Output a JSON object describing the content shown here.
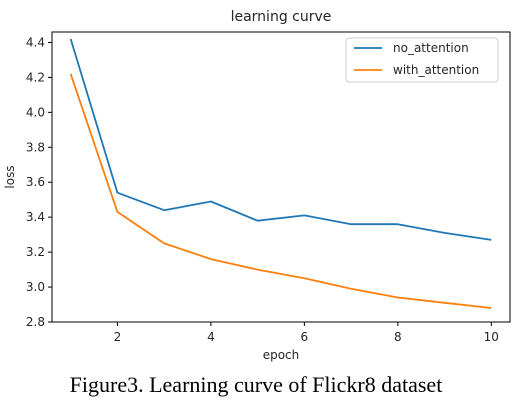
{
  "caption": "Figure3. Learning curve of Flickr8 dataset",
  "chart_data": {
    "type": "line",
    "title": "learning curve",
    "xlabel": "epoch",
    "ylabel": "loss",
    "x": [
      1,
      2,
      3,
      4,
      5,
      6,
      7,
      8,
      9,
      10
    ],
    "xlim": [
      0.6,
      10.4
    ],
    "ylim": [
      2.8,
      4.46
    ],
    "xticks": [
      2,
      4,
      6,
      8,
      10
    ],
    "yticks": [
      2.8,
      3.0,
      3.2,
      3.4,
      3.6,
      3.8,
      4.0,
      4.2,
      4.4
    ],
    "grid": false,
    "legend_position": "top-right",
    "series": [
      {
        "name": "no_attention",
        "color": "#1f77b4",
        "values": [
          4.42,
          3.54,
          3.44,
          3.49,
          3.38,
          3.41,
          3.36,
          3.36,
          3.31,
          3.27
        ]
      },
      {
        "name": "with_attention",
        "color": "#ff7f0e",
        "values": [
          4.22,
          3.43,
          3.25,
          3.16,
          3.1,
          3.05,
          2.99,
          2.94,
          2.91,
          2.88
        ]
      }
    ]
  }
}
